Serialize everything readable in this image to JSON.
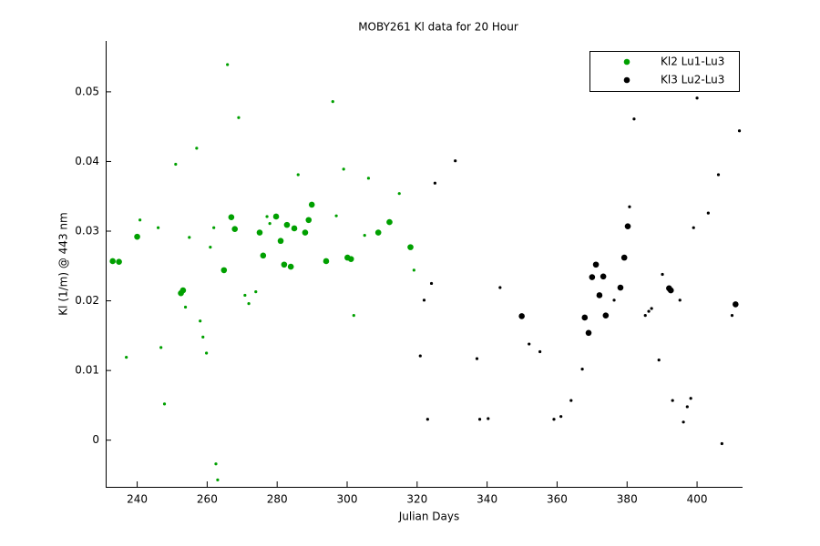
{
  "chart_data": {
    "type": "scatter",
    "title": "MOBY261   Kl data for 20 Hour",
    "xlabel": "Julian Days",
    "ylabel": "Kl (1/m) @ 443 nm",
    "xlim": [
      231,
      413
    ],
    "ylim": [
      -0.0067,
      0.0573
    ],
    "xticks": [
      240,
      260,
      280,
      300,
      320,
      340,
      360,
      380,
      400
    ],
    "yticks": [
      0,
      0.01,
      0.02,
      0.03,
      0.04,
      0.05
    ],
    "legend": "upper right",
    "grid": false,
    "series": [
      {
        "name": "Kl2 Lu1-Lu3",
        "color": "#00a000",
        "x": [
          233.0,
          234.8,
          240.0,
          252.5,
          253.1,
          264.8,
          266.9,
          267.9,
          275.0,
          276.0,
          279.7,
          281.0,
          282.0,
          282.8,
          283.9,
          284.9,
          288.0,
          289.0,
          289.9,
          294.0,
          300.1,
          301.1,
          308.9,
          312.1,
          318.1,
          236.9,
          240.8,
          246.0,
          246.8,
          247.8,
          251.0,
          253.8,
          254.9,
          257.0,
          258.0,
          258.8,
          259.8,
          260.9,
          261.9,
          262.5,
          263.0,
          265.8,
          269.0,
          270.8,
          271.9,
          273.9,
          277.1,
          277.9,
          286.0,
          295.9,
          296.9,
          299.0,
          301.9,
          305.0,
          306.1,
          314.9,
          319.1
        ],
        "values": [
          0.0257,
          0.0256,
          0.0292,
          0.0211,
          0.0215,
          0.0244,
          0.032,
          0.0303,
          0.0298,
          0.0265,
          0.0321,
          0.0286,
          0.0252,
          0.0309,
          0.0249,
          0.0304,
          0.0298,
          0.0316,
          0.0338,
          0.0257,
          0.0262,
          0.026,
          0.0298,
          0.0313,
          0.0277,
          0.0119,
          0.0316,
          0.0305,
          0.0133,
          0.0052,
          0.0396,
          0.0191,
          0.0291,
          0.0419,
          0.0171,
          0.0148,
          0.0125,
          0.0277,
          0.0305,
          -0.0034,
          -0.0057,
          0.0539,
          0.0463,
          0.0208,
          0.0196,
          0.0213,
          0.0321,
          0.0311,
          0.0381,
          0.0486,
          0.0322,
          0.0389,
          0.0179,
          0.0294,
          0.0376,
          0.0354,
          0.0244
        ],
        "markers": [
          "o",
          "o",
          "o",
          "o",
          "o",
          "o",
          "o",
          "o",
          "o",
          "o",
          "o",
          "o",
          "o",
          "o",
          "o",
          "o",
          "o",
          "o",
          "o",
          "o",
          "o",
          "o",
          "o",
          "o",
          "o",
          ".",
          ".",
          ".",
          ".",
          ".",
          ".",
          ".",
          ".",
          ".",
          ".",
          ".",
          ".",
          ".",
          ".",
          ".",
          ".",
          ".",
          ".",
          ".",
          ".",
          ".",
          ".",
          ".",
          ".",
          ".",
          ".",
          ".",
          ".",
          ".",
          ".",
          ".",
          "."
        ]
      },
      {
        "name": "Kl3 Lu2-Lu3",
        "color": "#000000",
        "x": [
          349.9,
          367.9,
          369.0,
          370.0,
          371.1,
          372.1,
          373.2,
          373.9,
          378.1,
          379.2,
          380.2,
          392.0,
          392.5,
          411.0,
          320.9,
          322.0,
          323.0,
          324.1,
          325.1,
          330.9,
          337.1,
          337.9,
          340.3,
          343.7,
          352.0,
          355.1,
          359.1,
          361.1,
          364.0,
          367.2,
          376.3,
          380.7,
          382.0,
          385.2,
          386.2,
          387.0,
          389.1,
          390.1,
          393.0,
          395.1,
          396.1,
          397.2,
          398.2,
          399.0,
          400.0,
          403.2,
          406.1,
          407.1,
          410.0,
          412.1
        ],
        "values": [
          0.0178,
          0.0176,
          0.0154,
          0.0234,
          0.0252,
          0.0208,
          0.0235,
          0.0179,
          0.0219,
          0.0262,
          0.0307,
          0.0218,
          0.0215,
          0.0195,
          0.0121,
          0.0201,
          0.003,
          0.0225,
          0.0369,
          0.0401,
          0.0117,
          0.003,
          0.0031,
          0.0219,
          0.0138,
          0.0127,
          0.003,
          0.0034,
          0.0057,
          0.0102,
          0.0201,
          0.0335,
          0.0461,
          0.0179,
          0.0185,
          0.0189,
          0.0115,
          0.0238,
          0.0057,
          0.0201,
          0.0026,
          0.0048,
          0.006,
          0.0305,
          0.0491,
          0.0326,
          0.0381,
          -0.0005,
          0.0179,
          0.0444
        ],
        "markers": [
          "o",
          "o",
          "o",
          "o",
          "o",
          "o",
          "o",
          "o",
          "o",
          "o",
          "o",
          "o",
          "o",
          "o",
          ".",
          ".",
          ".",
          ".",
          ".",
          ".",
          ".",
          ".",
          ".",
          ".",
          ".",
          ".",
          ".",
          ".",
          ".",
          ".",
          ".",
          ".",
          ".",
          ".",
          ".",
          ".",
          ".",
          ".",
          ".",
          ".",
          ".",
          ".",
          ".",
          ".",
          ".",
          ".",
          ".",
          ".",
          ".",
          "."
        ]
      }
    ]
  }
}
